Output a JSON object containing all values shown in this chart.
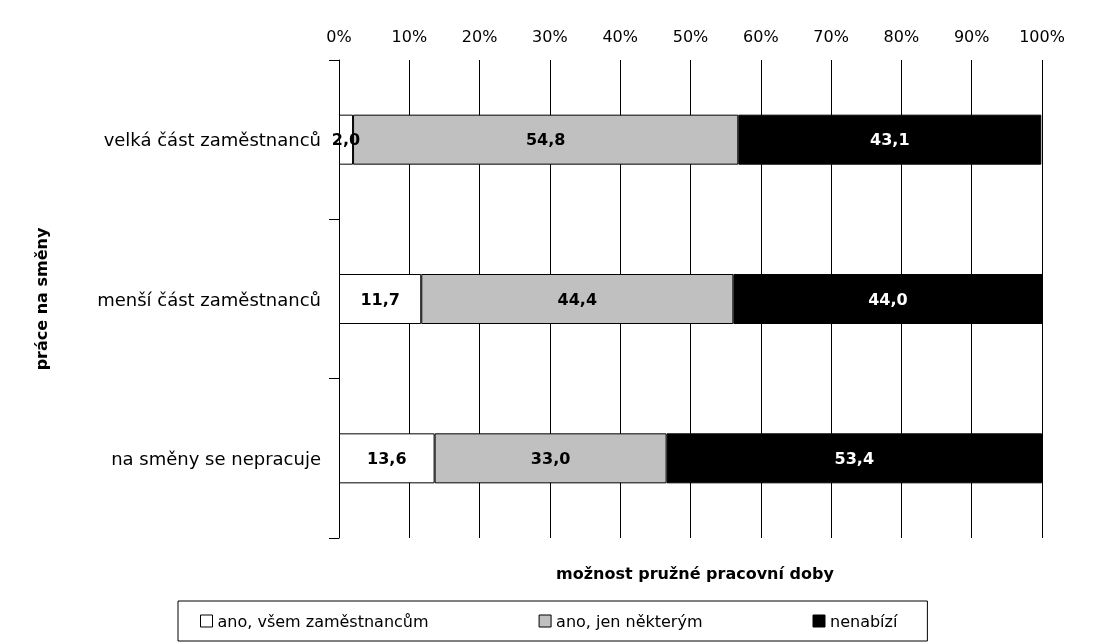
{
  "chart_data": {
    "type": "bar",
    "orientation": "horizontal",
    "stacked": true,
    "xlabel": "možnost pružné pracovní doby",
    "ylabel": "práce na směny",
    "categories": [
      "velká část zaměstnanců",
      "menší část zaměstnanců",
      "na směny se nepracuje"
    ],
    "series": [
      {
        "name": "ano, všem zaměstnancům",
        "color": "#ffffff",
        "values": [
          2.0,
          11.7,
          13.6
        ],
        "value_labels": [
          "2,0",
          "11,7",
          "13,6"
        ]
      },
      {
        "name": "ano, jen některým",
        "color": "#c0c0c0",
        "values": [
          54.8,
          44.4,
          33.0
        ],
        "value_labels": [
          "54,8",
          "44,4",
          "33,0"
        ]
      },
      {
        "name": "nenabízí",
        "color": "#000000",
        "values": [
          43.1,
          44.0,
          53.4
        ],
        "value_labels": [
          "43,1",
          "44,0",
          "53,4"
        ]
      }
    ],
    "xlim": [
      0,
      100
    ],
    "xticks": [
      {
        "value": 0,
        "label": "0%"
      },
      {
        "value": 10,
        "label": "10%"
      },
      {
        "value": 20,
        "label": "20%"
      },
      {
        "value": 30,
        "label": "30%"
      },
      {
        "value": 40,
        "label": "40%"
      },
      {
        "value": 50,
        "label": "50%"
      },
      {
        "value": 60,
        "label": "60%"
      },
      {
        "value": 70,
        "label": "70%"
      },
      {
        "value": 80,
        "label": "80%"
      },
      {
        "value": 90,
        "label": "90%"
      },
      {
        "value": 100,
        "label": "100%"
      }
    ],
    "grid": "x",
    "legend": "bottom"
  }
}
